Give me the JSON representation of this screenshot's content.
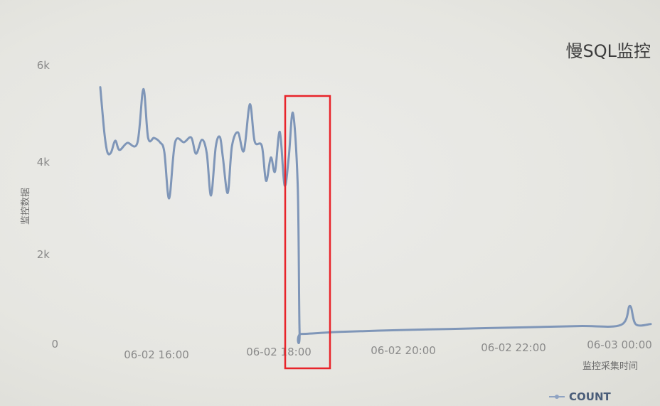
{
  "chart_data": {
    "type": "line",
    "title": "慢SQL监控",
    "xlabel": "监控采集时间",
    "ylabel": "监控数据",
    "y_ticks": [
      "0",
      "2k",
      "4k",
      "6k"
    ],
    "ylim": [
      0,
      6000
    ],
    "x_ticks": [
      "06-02 16:00",
      "06-02 18:00",
      "06-02 20:00",
      "06-02 22:00",
      "06-03 00:00"
    ],
    "xlim_hours": [
      14.75,
      24.2
    ],
    "grid": false,
    "legend_position": "bottom-right",
    "series": [
      {
        "name": "COUNT",
        "color": "#7f96b8",
        "points": [
          [
            15.0,
            5500
          ],
          [
            15.07,
            4500
          ],
          [
            15.12,
            4100
          ],
          [
            15.18,
            4100
          ],
          [
            15.25,
            4350
          ],
          [
            15.32,
            4150
          ],
          [
            15.45,
            4300
          ],
          [
            15.62,
            4300
          ],
          [
            15.72,
            5450
          ],
          [
            15.8,
            4400
          ],
          [
            15.9,
            4400
          ],
          [
            16.0,
            4300
          ],
          [
            16.07,
            4100
          ],
          [
            16.15,
            3100
          ],
          [
            16.25,
            4300
          ],
          [
            16.4,
            4300
          ],
          [
            16.52,
            4400
          ],
          [
            16.6,
            4050
          ],
          [
            16.7,
            4350
          ],
          [
            16.78,
            4050
          ],
          [
            16.85,
            3150
          ],
          [
            16.93,
            4200
          ],
          [
            17.0,
            4400
          ],
          [
            17.05,
            3950
          ],
          [
            17.13,
            3200
          ],
          [
            17.2,
            4200
          ],
          [
            17.3,
            4500
          ],
          [
            17.4,
            4100
          ],
          [
            17.5,
            5100
          ],
          [
            17.58,
            4300
          ],
          [
            17.7,
            4200
          ],
          [
            17.77,
            3450
          ],
          [
            17.85,
            3950
          ],
          [
            17.92,
            3650
          ],
          [
            18.0,
            4500
          ],
          [
            18.08,
            3350
          ],
          [
            18.15,
            3950
          ],
          [
            18.22,
            4900
          ],
          [
            18.3,
            3300
          ],
          [
            18.33,
            200
          ],
          [
            18.36,
            150
          ],
          [
            19.0,
            180
          ],
          [
            20.0,
            200
          ],
          [
            21.0,
            210
          ],
          [
            22.0,
            220
          ],
          [
            23.0,
            230
          ],
          [
            23.7,
            240
          ],
          [
            23.85,
            650
          ],
          [
            23.95,
            250
          ],
          [
            24.2,
            250
          ]
        ]
      }
    ],
    "highlight_box": {
      "from_hour": 18.3,
      "to_hour": 18.62,
      "color": "#e8242a"
    }
  }
}
